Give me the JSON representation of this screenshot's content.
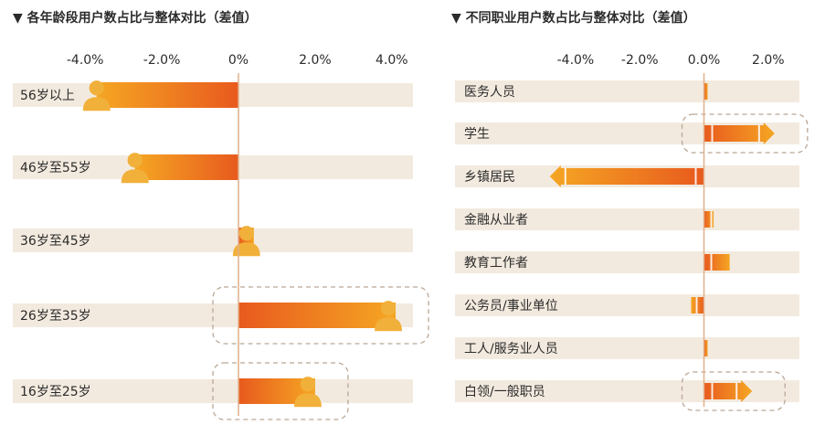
{
  "colors": {
    "band": "#f3eadf",
    "bar_start": "#e85a1e",
    "bar_end": "#f5a623",
    "person": "#f1b03a",
    "axis": "#e0b08a",
    "dash": "#b9a796"
  },
  "chart_data": [
    {
      "type": "bar",
      "orientation": "horizontal",
      "title": "▼ 各年龄段用户数占比与整体对比（差值）",
      "categories": [
        "56岁以上",
        "46岁至55岁",
        "36岁至45岁",
        "26岁至35岁",
        "16岁至25岁"
      ],
      "values": [
        -3.7,
        -2.7,
        0.4,
        4.1,
        2.0
      ],
      "xlim": [
        -4.6,
        5.1
      ],
      "xticks": [
        -4.0,
        -2.0,
        0.0,
        2.0,
        4.0
      ],
      "xtick_labels": [
        "-4.0%",
        "-2.0%",
        "0%",
        "2.0%",
        "4.0%"
      ],
      "highlighted": [
        "26岁至35岁",
        "16岁至25岁"
      ],
      "marker_icon": "person-icon",
      "grid": false
    },
    {
      "type": "bar",
      "orientation": "horizontal",
      "title": "▼ 不同职业用户数占比与整体对比（差值）",
      "categories": [
        "医务人员",
        "学生",
        "乡镇居民",
        "金融从业者",
        "教育工作者",
        "公务员/事业单位",
        "工人/服务业人员",
        "白领/一般职员"
      ],
      "values": [
        0.1,
        2.2,
        -4.8,
        0.3,
        0.8,
        -0.4,
        0.1,
        1.5
      ],
      "xlim": [
        -6.9,
        3.2
      ],
      "xticks": [
        -4.0,
        -2.0,
        0.0,
        2.0
      ],
      "xtick_labels": [
        "-4.0%",
        "-2.0%",
        "0.0%",
        "2.0%"
      ],
      "highlighted": [
        "学生",
        "白领/一般职员"
      ],
      "marker_icon": "arrow-head-icon",
      "grid": false
    }
  ]
}
